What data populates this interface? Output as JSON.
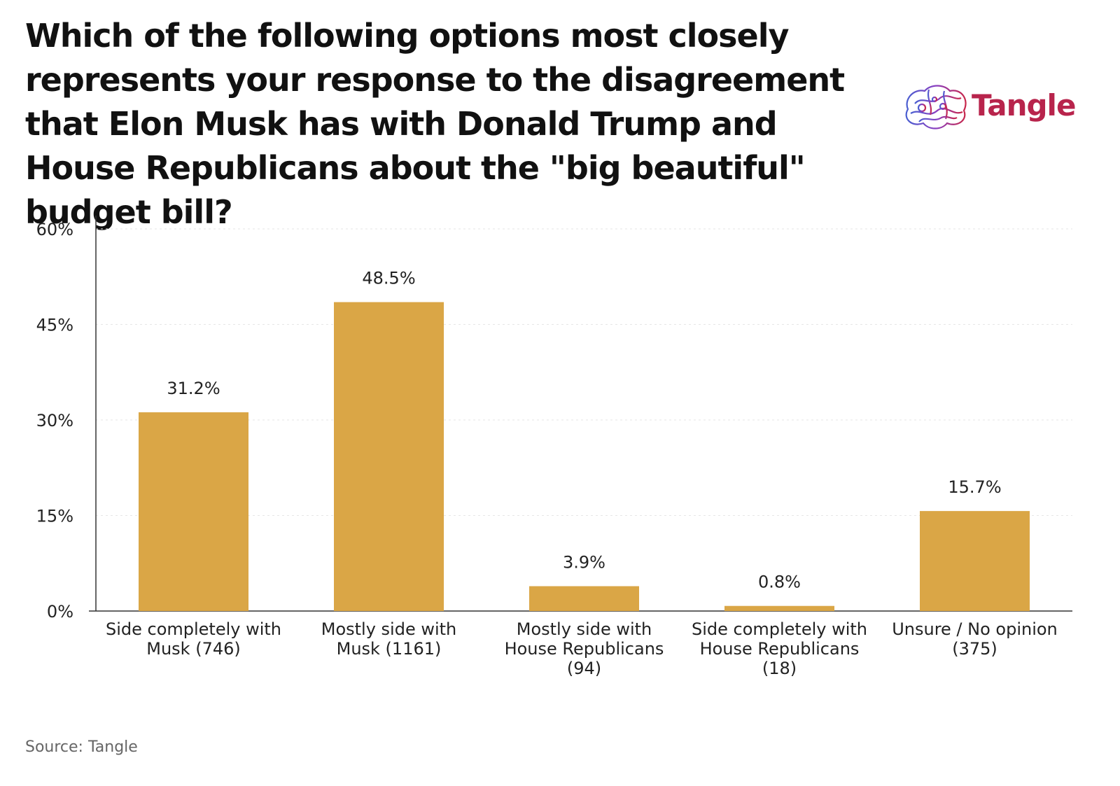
{
  "header": {
    "title": "Which of the following options most closely represents your response to the disagreement that Elon Musk has with Donald Trump and House Republicans about the \"big beautiful\" budget bill?"
  },
  "logo": {
    "text": "Tangle"
  },
  "colors": {
    "bar": "#daa646",
    "axis": "#333333",
    "grid": "#e6e6e6",
    "logo_text": "#b8244c"
  },
  "chart_data": {
    "type": "bar",
    "title": "Which of the following options most closely represents your response to the disagreement that Elon Musk has with Donald Trump and House Republicans about the \"big beautiful\" budget bill?",
    "categories": [
      [
        "Side completely with",
        "Musk (746)"
      ],
      [
        "Mostly side with",
        "Musk (1161)"
      ],
      [
        "Mostly side with",
        "House Republicans",
        "(94)"
      ],
      [
        "Side completely with",
        "House Republicans",
        "(18)"
      ],
      [
        "Unsure / No opinion",
        "(375)"
      ]
    ],
    "values": [
      31.2,
      48.5,
      3.9,
      0.8,
      15.7
    ],
    "value_labels": [
      "31.2%",
      "48.5%",
      "3.9%",
      "0.8%",
      "15.7%"
    ],
    "yticks": [
      0,
      15,
      30,
      45,
      60
    ],
    "ytick_labels": [
      "0%",
      "15%",
      "30%",
      "45%",
      "60%"
    ],
    "ylim": [
      0,
      60
    ],
    "xlabel": "",
    "ylabel": "",
    "grid": true,
    "legend": false
  },
  "footer": {
    "source": "Source: Tangle"
  }
}
